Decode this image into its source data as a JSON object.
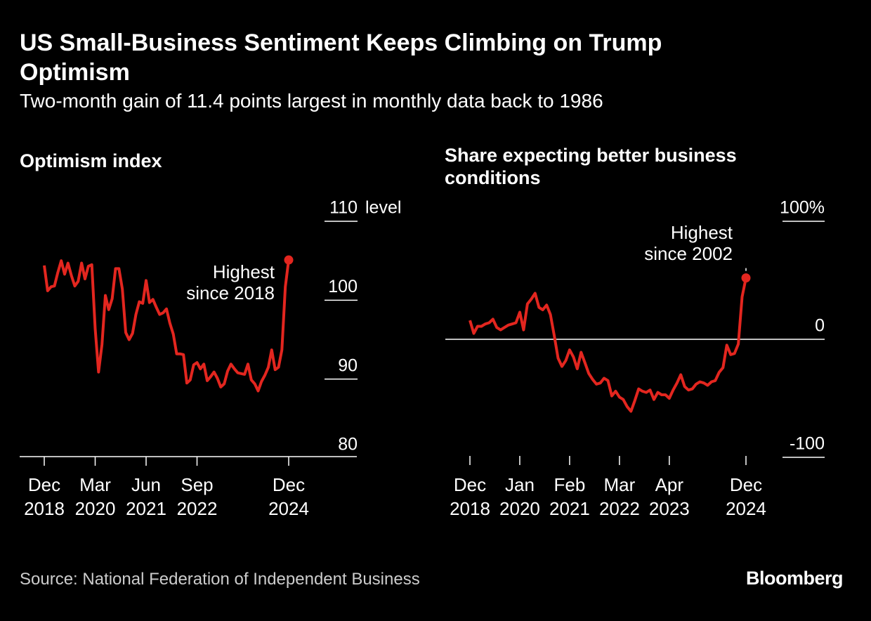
{
  "title": "US Small-Business Sentiment Keeps Climbing on Trump Optimism",
  "subtitle": "Two-month gain of 11.4 points largest in monthly data back to 1986",
  "source": "Source: National Federation of Independent Business",
  "brand": "Bloomberg",
  "chart_data": [
    {
      "type": "line",
      "title": "Optimism index",
      "y_unit": "level",
      "color": "#e3261f",
      "x": [
        "2018-12",
        "2019-01",
        "2019-02",
        "2019-03",
        "2019-04",
        "2019-05",
        "2019-06",
        "2019-07",
        "2019-08",
        "2019-09",
        "2019-10",
        "2019-11",
        "2019-12",
        "2020-01",
        "2020-02",
        "2020-03",
        "2020-04",
        "2020-05",
        "2020-06",
        "2020-07",
        "2020-08",
        "2020-09",
        "2020-10",
        "2020-11",
        "2020-12",
        "2021-01",
        "2021-02",
        "2021-03",
        "2021-04",
        "2021-05",
        "2021-06",
        "2021-07",
        "2021-08",
        "2021-09",
        "2021-10",
        "2021-11",
        "2021-12",
        "2022-01",
        "2022-02",
        "2022-03",
        "2022-04",
        "2022-05",
        "2022-06",
        "2022-07",
        "2022-08",
        "2022-09",
        "2022-10",
        "2022-11",
        "2022-12",
        "2023-01",
        "2023-02",
        "2023-03",
        "2023-04",
        "2023-05",
        "2023-06",
        "2023-07",
        "2023-08",
        "2023-09",
        "2023-10",
        "2023-11",
        "2023-12",
        "2024-01",
        "2024-02",
        "2024-03",
        "2024-04",
        "2024-05",
        "2024-06",
        "2024-07",
        "2024-08",
        "2024-09",
        "2024-10",
        "2024-11",
        "2024-12"
      ],
      "values": [
        104.4,
        101.2,
        101.7,
        101.8,
        103.5,
        105.0,
        103.3,
        104.7,
        103.1,
        101.8,
        102.4,
        104.7,
        102.7,
        104.3,
        104.5,
        96.4,
        90.9,
        94.4,
        100.6,
        98.8,
        100.2,
        104.0,
        104.0,
        101.4,
        95.9,
        95.0,
        95.8,
        98.2,
        99.8,
        99.6,
        102.5,
        99.7,
        100.1,
        99.1,
        98.2,
        98.4,
        98.9,
        97.1,
        95.7,
        93.2,
        93.2,
        93.1,
        89.5,
        89.9,
        91.8,
        92.1,
        91.3,
        91.9,
        89.8,
        90.3,
        90.9,
        90.1,
        89.0,
        89.4,
        91.0,
        91.9,
        91.3,
        90.8,
        90.7,
        90.6,
        91.9,
        89.9,
        89.4,
        88.5,
        89.7,
        90.5,
        91.5,
        93.7,
        91.2,
        91.5,
        93.7,
        101.7,
        105.1
      ],
      "ylim": [
        80,
        110
      ],
      "yticks": [
        80,
        90,
        100,
        110
      ],
      "xticks": [
        {
          "value": "2018-12",
          "label": "Dec 2018"
        },
        {
          "value": "2020-03",
          "label": "Mar 2020"
        },
        {
          "value": "2021-06",
          "label": "Jun 2021"
        },
        {
          "value": "2022-09",
          "label": "Sep 2022"
        },
        {
          "value": "2024-12",
          "label": "Dec 2024"
        }
      ],
      "annotation": "Highest since 2018"
    },
    {
      "type": "line",
      "title": "Share expecting better business conditions",
      "color": "#e3261f",
      "x": [
        "2018-12",
        "2019-01",
        "2019-02",
        "2019-03",
        "2019-04",
        "2019-05",
        "2019-06",
        "2019-07",
        "2019-08",
        "2019-09",
        "2019-10",
        "2019-11",
        "2019-12",
        "2020-01",
        "2020-02",
        "2020-03",
        "2020-04",
        "2020-05",
        "2020-06",
        "2020-07",
        "2020-08",
        "2020-09",
        "2020-10",
        "2020-11",
        "2020-12",
        "2021-01",
        "2021-02",
        "2021-03",
        "2021-04",
        "2021-05",
        "2021-06",
        "2021-07",
        "2021-08",
        "2021-09",
        "2021-10",
        "2021-11",
        "2021-12",
        "2022-01",
        "2022-02",
        "2022-03",
        "2022-04",
        "2022-05",
        "2022-06",
        "2022-07",
        "2022-08",
        "2022-09",
        "2022-10",
        "2022-11",
        "2022-12",
        "2023-01",
        "2023-02",
        "2023-03",
        "2023-04",
        "2023-05",
        "2023-06",
        "2023-07",
        "2023-08",
        "2023-09",
        "2023-10",
        "2023-11",
        "2023-12",
        "2024-01",
        "2024-02",
        "2024-03",
        "2024-04",
        "2024-05",
        "2024-06",
        "2024-07",
        "2024-08",
        "2024-09",
        "2024-10",
        "2024-11",
        "2024-12"
      ],
      "values": [
        16,
        5,
        11,
        11,
        13,
        14,
        17,
        10,
        8,
        10,
        12,
        13,
        14,
        23,
        8,
        30,
        34,
        39,
        27,
        25,
        29,
        21,
        3,
        -16,
        -23,
        -18,
        -9,
        -15,
        -25,
        -11,
        -20,
        -29,
        -34,
        -38,
        -37,
        -33,
        -35,
        -48,
        -44,
        -49,
        -51,
        -57,
        -61,
        -52,
        -42,
        -44,
        -45,
        -43,
        -51,
        -45,
        -47,
        -47,
        -50,
        -43,
        -37,
        -30,
        -40,
        -43,
        -42,
        -38,
        -36,
        -37,
        -39,
        -36,
        -35,
        -28,
        -24,
        -5,
        -13,
        -12,
        -4,
        36,
        52
      ],
      "ylim": [
        -100,
        100
      ],
      "yticks": [
        {
          "value": -100,
          "label": "-100"
        },
        0,
        {
          "value": 100,
          "label": "100%"
        }
      ],
      "zero_line": true,
      "xticks": [
        {
          "value": "2018-12",
          "label": "Dec 2018"
        },
        {
          "value": "2020-01",
          "label": "Jan 2020"
        },
        {
          "value": "2021-02",
          "label": "Feb 2021"
        },
        {
          "value": "2022-03",
          "label": "Mar 2022"
        },
        {
          "value": "2023-04",
          "label": "Apr 2023"
        },
        {
          "value": "2024-12",
          "label": "Dec 2024"
        }
      ],
      "annotation": "Highest since 2002"
    }
  ]
}
